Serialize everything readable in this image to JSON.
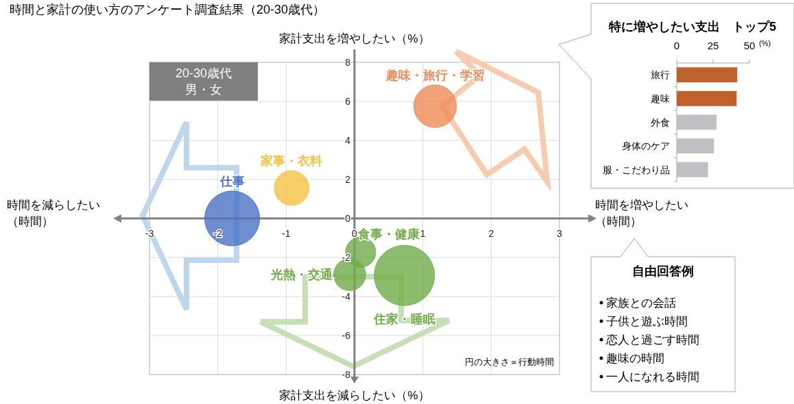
{
  "chart_data": [
    {
      "type": "bubble",
      "title": "時間と家計の使い方のアンケート調査結果（20-30歳代）",
      "xlabel": "時間を増やしたい（時間）",
      "ylabel": "家計支出を増やしたい（%）",
      "xlim": [
        -3,
        3
      ],
      "ylim": [
        -8,
        8
      ],
      "xticks": [
        -3,
        -2,
        -1,
        0,
        1,
        2,
        3
      ],
      "yticks": [
        -8,
        -6,
        -4,
        -2,
        0,
        2,
        4,
        6,
        8
      ],
      "grid": true,
      "legend": false,
      "series": [
        {
          "name": "仕事",
          "color": "#4a72c4",
          "x": [
            -1.79
          ],
          "values": [
            0
          ],
          "sizes": [
            0.83
          ]
        },
        {
          "name": "家事・衣料",
          "color": "#f5c342",
          "x": [
            -0.92
          ],
          "values": [
            1.56
          ],
          "sizes": [
            0.33
          ]
        },
        {
          "name": "趣味・旅行・学習",
          "color": "#ed8b57",
          "x": [
            1.18
          ],
          "values": [
            5.75
          ],
          "sizes": [
            0.5
          ]
        },
        {
          "name": "食事・健康",
          "color": "#70ad47",
          "x": [
            0.09
          ],
          "values": [
            -1.73
          ],
          "sizes": [
            0.25
          ]
        },
        {
          "name": "光熱・交通",
          "color": "#70ad47",
          "x": [
            -0.07
          ],
          "values": [
            -2.88
          ],
          "sizes": [
            0.28
          ]
        },
        {
          "name": "住家・睡眠",
          "color": "#70ad47",
          "x": [
            0.73
          ],
          "values": [
            -2.92
          ],
          "sizes": [
            1
          ]
        }
      ],
      "annotations": [
        "家計支出を減らしたい（%）",
        "時間を減らしたい（時間）",
        "20-30歳代男・女",
        "円の大きさ＝行動時間"
      ]
    },
    {
      "type": "bar",
      "orientation": "horizontal",
      "title": "特に増やしたい支出　トップ5",
      "xlabel": "(%)",
      "categories": [
        "旅行",
        "趣味",
        "外食",
        "身体のケア",
        "服・こだわり品"
      ],
      "values": [
        41.6,
        41.2,
        27.4,
        25.6,
        21.5
      ],
      "colors": [
        "#c0602a",
        "#c0602a",
        "#bfbfc4",
        "#bfbfc4",
        "#bfbfc4"
      ],
      "xlim": [
        0,
        50
      ],
      "xticks": [
        0,
        25,
        50
      ]
    },
    {
      "type": "other",
      "title": "自由回答例",
      "annotations": [
        "家族との会話",
        "子供と遊ぶ時間",
        "恋人と過ごす時間",
        "趣味の時間",
        "一人になれる時間"
      ]
    }
  ]
}
